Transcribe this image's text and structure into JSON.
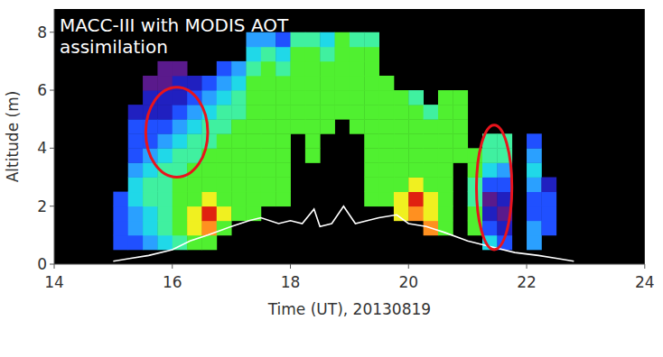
{
  "chart_data": {
    "type": "heatmap",
    "title": "MACC-III with MODIS AOT assimilation",
    "x_label": "Time (UT), 20130819",
    "y_label": "Altitude (m)",
    "xlim": [
      14,
      24
    ],
    "ylim": [
      0,
      8.8
    ],
    "xticks": [
      14,
      16,
      18,
      20,
      22,
      24
    ],
    "yticks": [
      0,
      2,
      4,
      6,
      8
    ],
    "zlim": [
      0,
      9
    ],
    "x_edges": [
      15.0,
      15.25,
      15.5,
      15.75,
      16.0,
      16.25,
      16.5,
      16.75,
      17.0,
      17.25,
      17.5,
      17.75,
      18.0,
      18.25,
      18.5,
      18.75,
      19.0,
      19.25,
      19.5,
      19.75,
      20.0,
      20.25,
      20.5,
      20.75,
      21.0,
      21.25,
      21.5,
      21.75,
      22.0,
      22.25,
      22.5,
      22.75
    ],
    "y_edges": [
      0,
      0.5,
      1,
      1.5,
      2,
      2.5,
      3,
      3.5,
      4,
      4.5,
      5,
      5.5,
      6,
      6.5,
      7,
      7.5,
      8
    ],
    "z": [
      [
        null,
        2,
        2,
        2,
        2,
        null,
        null,
        null,
        null,
        null,
        null,
        null,
        null,
        null,
        null,
        null
      ],
      [
        null,
        2,
        3,
        3,
        4,
        4,
        3,
        2,
        2,
        2,
        1,
        null,
        null,
        null,
        null,
        null
      ],
      [
        null,
        3,
        4,
        4,
        5,
        5,
        4,
        3,
        2,
        2,
        1,
        1,
        0,
        null,
        null,
        null
      ],
      [
        null,
        4,
        5,
        5,
        5,
        5,
        5,
        4,
        3,
        2,
        1,
        1,
        0,
        0,
        null,
        null
      ],
      [
        null,
        5,
        6,
        6,
        6,
        6,
        5,
        5,
        4,
        3,
        2,
        1,
        1,
        0,
        null,
        null
      ],
      [
        null,
        6,
        7,
        7,
        6,
        6,
        6,
        5,
        5,
        4,
        3,
        2,
        1,
        null,
        null,
        null
      ],
      [
        null,
        6,
        8,
        9,
        7,
        6,
        6,
        6,
        5,
        5,
        4,
        3,
        2,
        null,
        null,
        null
      ],
      [
        null,
        null,
        6,
        7,
        6,
        6,
        6,
        6,
        6,
        5,
        5,
        4,
        3,
        2,
        null,
        null
      ],
      [
        null,
        null,
        null,
        6,
        6,
        6,
        6,
        6,
        6,
        6,
        5,
        5,
        4,
        3,
        null,
        null
      ],
      [
        null,
        null,
        null,
        6,
        6,
        6,
        6,
        6,
        6,
        6,
        6,
        6,
        6,
        5,
        4,
        3
      ],
      [
        null,
        null,
        null,
        null,
        6,
        6,
        6,
        6,
        6,
        6,
        6,
        6,
        6,
        6,
        5,
        3
      ],
      [
        null,
        null,
        null,
        null,
        6,
        6,
        6,
        6,
        6,
        6,
        6,
        6,
        6,
        5,
        4,
        2
      ],
      [
        null,
        null,
        null,
        null,
        null,
        null,
        null,
        null,
        null,
        6,
        6,
        6,
        6,
        6,
        6,
        5
      ],
      [
        null,
        null,
        null,
        null,
        null,
        null,
        null,
        6,
        6,
        6,
        6,
        6,
        6,
        6,
        6,
        5
      ],
      [
        null,
        null,
        null,
        null,
        null,
        null,
        null,
        null,
        null,
        6,
        6,
        6,
        6,
        6,
        5,
        4
      ],
      [
        null,
        null,
        null,
        null,
        null,
        null,
        null,
        null,
        null,
        null,
        6,
        6,
        6,
        6,
        6,
        6
      ],
      [
        null,
        null,
        null,
        null,
        null,
        null,
        null,
        null,
        null,
        6,
        6,
        6,
        6,
        6,
        6,
        5
      ],
      [
        null,
        null,
        null,
        null,
        6,
        6,
        6,
        6,
        6,
        6,
        6,
        6,
        6,
        6,
        6,
        5
      ],
      [
        null,
        null,
        null,
        null,
        6,
        6,
        6,
        6,
        6,
        6,
        6,
        6,
        6,
        null,
        null,
        null
      ],
      [
        null,
        null,
        null,
        7,
        7,
        6,
        6,
        6,
        6,
        6,
        6,
        6,
        null,
        null,
        null,
        null
      ],
      [
        null,
        null,
        null,
        8,
        9,
        7,
        6,
        6,
        6,
        6,
        6,
        5,
        null,
        null,
        null,
        null
      ],
      [
        null,
        null,
        8,
        7,
        7,
        6,
        6,
        6,
        6,
        6,
        5,
        null,
        null,
        null,
        null,
        null
      ],
      [
        null,
        null,
        6,
        6,
        6,
        6,
        6,
        6,
        6,
        6,
        6,
        6,
        null,
        null,
        null,
        null
      ],
      [
        null,
        null,
        null,
        null,
        null,
        null,
        null,
        6,
        6,
        6,
        6,
        6,
        null,
        null,
        null,
        null
      ],
      [
        null,
        null,
        6,
        6,
        5,
        5,
        6,
        6,
        null,
        null,
        null,
        null,
        null,
        null,
        null,
        null
      ],
      [
        null,
        4,
        2,
        1,
        0,
        2,
        4,
        5,
        5,
        null,
        null,
        null,
        null,
        null,
        null,
        null
      ],
      [
        null,
        2,
        1,
        0,
        1,
        2,
        3,
        5,
        5,
        null,
        null,
        null,
        null,
        null,
        null,
        null
      ],
      [
        null,
        null,
        null,
        null,
        null,
        null,
        null,
        null,
        null,
        null,
        null,
        null,
        null,
        null,
        null,
        null
      ],
      [
        null,
        3,
        3,
        2,
        2,
        3,
        4,
        3,
        2,
        null,
        null,
        null,
        null,
        null,
        null,
        null
      ],
      [
        null,
        null,
        2,
        2,
        2,
        1,
        null,
        null,
        null,
        null,
        null,
        null,
        null,
        null,
        null,
        null
      ],
      [
        null,
        null,
        null,
        null,
        null,
        null,
        null,
        null,
        null,
        null,
        null,
        null,
        null,
        null,
        null,
        null
      ]
    ],
    "series": [
      {
        "type": "line",
        "color": "#ffffff",
        "x": [
          15.0,
          15.3,
          15.6,
          16.0,
          16.3,
          16.6,
          17.0,
          17.3,
          17.5,
          17.8,
          18.0,
          18.2,
          18.4,
          18.5,
          18.7,
          18.9,
          19.1,
          19.3,
          19.5,
          19.8,
          20.0,
          20.3,
          20.6,
          21.0,
          21.4,
          21.8,
          22.2,
          22.5,
          22.8
        ],
        "values": [
          0.1,
          0.2,
          0.3,
          0.5,
          0.8,
          1.0,
          1.3,
          1.5,
          1.6,
          1.4,
          1.5,
          1.4,
          1.9,
          1.3,
          1.4,
          2.0,
          1.4,
          1.5,
          1.6,
          1.7,
          1.4,
          1.3,
          1.1,
          0.8,
          0.6,
          0.4,
          0.3,
          0.2,
          0.1
        ]
      }
    ],
    "highlights": [
      {
        "color": "#e8141c",
        "x": [
          15.55,
          16.6
        ],
        "y": [
          3.0,
          6.1
        ]
      },
      {
        "color": "#e8141c",
        "x": [
          21.15,
          21.75
        ],
        "y": [
          0.5,
          4.8
        ]
      }
    ]
  }
}
